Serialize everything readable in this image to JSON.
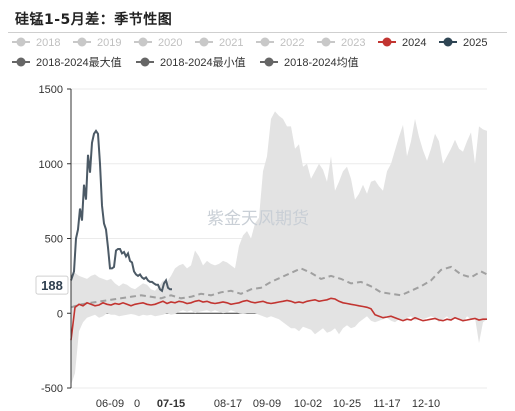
{
  "chart_data": {
    "type": "line",
    "title": "硅锰1-5月差：季节性图",
    "watermark": "紫金天风期货",
    "ylim": [
      -500,
      1500
    ],
    "yticks": [
      1500,
      1000,
      500,
      0,
      -500
    ],
    "xticks": [
      "06-09",
      "0",
      "07-15",
      "08-17",
      "09-09",
      "10-02",
      "10-25",
      "11-17",
      "12-10"
    ],
    "highlight_x": "07-15",
    "highlight_y": "188",
    "legend": [
      {
        "name": "2018",
        "color": "#c8c8c8",
        "active": false
      },
      {
        "name": "2019",
        "color": "#c8c8c8",
        "active": false
      },
      {
        "name": "2020",
        "color": "#c8c8c8",
        "active": false
      },
      {
        "name": "2021",
        "color": "#c8c8c8",
        "active": false
      },
      {
        "name": "2022",
        "color": "#c8c8c8",
        "active": false
      },
      {
        "name": "2023",
        "color": "#c8c8c8",
        "active": false
      },
      {
        "name": "2024",
        "color": "#c23531",
        "active": true
      },
      {
        "name": "2025",
        "color": "#2f4554",
        "active": true
      },
      {
        "name": "2018-2024最大值",
        "color": "#666666",
        "active": true
      },
      {
        "name": "2018-2024最小值",
        "color": "#666666",
        "active": true
      },
      {
        "name": "2018-2024均值",
        "color": "#666666",
        "active": true
      }
    ],
    "series": [
      {
        "name": "2018-2024最大值",
        "color": "#e3e3e3",
        "x": [
          0,
          4,
          8,
          12,
          16,
          20,
          24,
          28,
          32,
          36,
          40,
          44,
          48,
          52,
          56,
          60,
          64,
          68,
          72,
          76,
          80,
          84,
          88,
          92,
          96,
          100,
          104,
          108,
          112,
          116,
          120,
          124,
          128,
          132,
          136,
          140,
          144,
          148,
          152,
          156,
          160,
          164,
          168,
          172,
          176,
          180,
          184,
          188,
          192,
          196,
          200,
          204,
          208,
          212,
          216,
          220,
          224,
          228,
          232,
          236,
          240,
          244,
          248,
          252,
          256,
          260,
          264,
          268,
          272,
          276,
          280,
          284,
          288,
          292,
          296,
          300,
          304,
          308,
          312,
          316,
          320,
          324,
          328,
          332,
          336,
          340,
          344,
          348,
          352,
          356,
          360,
          364,
          368,
          372,
          376,
          380,
          384,
          388,
          392,
          396,
          400,
          404,
          408,
          412,
          416
        ],
        "y": [
          260,
          270,
          250,
          240,
          230,
          250,
          260,
          240,
          230,
          220,
          230,
          200,
          180,
          200,
          190,
          170,
          160,
          180,
          200,
          190,
          160,
          150,
          180,
          220,
          210,
          250,
          300,
          320,
          330,
          300,
          320,
          420,
          380,
          320,
          350,
          330,
          320,
          330,
          350,
          340,
          320,
          300,
          450,
          520,
          550,
          500,
          600,
          640,
          950,
          1050,
          1300,
          1350,
          1320,
          1300,
          1250,
          1250,
          1100,
          1130,
          980,
          1000,
          900,
          950,
          1000,
          960,
          880,
          1050,
          820,
          880,
          950,
          980,
          900,
          760,
          800,
          860,
          800,
          880,
          890,
          850,
          820,
          950,
          1000,
          1090,
          1180,
          1260,
          1050,
          1150,
          1300,
          1180,
          1090,
          1020,
          1100,
          1200,
          1150,
          1000,
          1050,
          1100,
          1160,
          1100,
          1080,
          1150,
          1210,
          1000,
          1250,
          1230,
          1220
        ]
      },
      {
        "name": "2018-2024最小值",
        "color": "#e3e3e3",
        "x": [
          0,
          4,
          8,
          12,
          16,
          20,
          24,
          28,
          32,
          36,
          40,
          44,
          48,
          52,
          56,
          60,
          64,
          68,
          72,
          76,
          80,
          84,
          88,
          92,
          96,
          100,
          104,
          108,
          112,
          116,
          120,
          124,
          128,
          132,
          136,
          140,
          144,
          148,
          152,
          156,
          160,
          164,
          168,
          172,
          176,
          180,
          184,
          188,
          192,
          196,
          200,
          204,
          208,
          212,
          216,
          220,
          224,
          228,
          232,
          236,
          240,
          244,
          248,
          252,
          256,
          260,
          264,
          268,
          272,
          276,
          280,
          284,
          288,
          292,
          296,
          300,
          304,
          308,
          312,
          316,
          320,
          324,
          328,
          332,
          336,
          340,
          344,
          348,
          352,
          356,
          360,
          364,
          368,
          372,
          376,
          380,
          384,
          388,
          392,
          396,
          400,
          404,
          408,
          412,
          416
        ],
        "y": [
          -480,
          -400,
          -120,
          -60,
          -30,
          -20,
          -10,
          -30,
          -20,
          0,
          -10,
          -10,
          -20,
          -15,
          -10,
          -5,
          -10,
          -20,
          -10,
          -15,
          -10,
          -20,
          -15,
          -10,
          0,
          -10,
          -5,
          10,
          20,
          10,
          20,
          0,
          10,
          15,
          20,
          10,
          20,
          10,
          0,
          5,
          20,
          10,
          0,
          -5,
          0,
          0,
          0,
          -10,
          -20,
          -30,
          -20,
          -30,
          -40,
          -60,
          -80,
          -100,
          -100,
          -120,
          -90,
          -100,
          -110,
          -140,
          -120,
          -100,
          -130,
          -120,
          -100,
          -140,
          -100,
          -80,
          -100,
          -90,
          -60,
          -40,
          -20,
          -50,
          -60,
          -50,
          -40,
          -30,
          -50,
          -60,
          -40,
          -50,
          -30,
          -20,
          -50,
          -30,
          -40,
          -30,
          -20,
          -30,
          -60,
          -40,
          -20,
          -50,
          -30,
          -40,
          -60,
          -20,
          -40,
          -30,
          -200,
          -60,
          -40
        ]
      },
      {
        "name": "2018-2024均值",
        "color": "#999999",
        "x": [
          0,
          10,
          20,
          30,
          40,
          50,
          60,
          70,
          80,
          90,
          100,
          110,
          120,
          130,
          140,
          150,
          160,
          170,
          180,
          190,
          200,
          210,
          220,
          230,
          240,
          250,
          260,
          270,
          280,
          290,
          300,
          310,
          320,
          330,
          340,
          350,
          360,
          370,
          380,
          390,
          400,
          410,
          416
        ],
        "y": [
          40,
          60,
          70,
          80,
          90,
          100,
          110,
          120,
          110,
          100,
          120,
          100,
          110,
          130,
          120,
          140,
          150,
          130,
          160,
          170,
          210,
          240,
          270,
          300,
          270,
          230,
          250,
          230,
          200,
          210,
          180,
          140,
          130,
          120,
          150,
          180,
          220,
          290,
          310,
          260,
          240,
          280,
          260
        ]
      },
      {
        "name": "2024",
        "color": "#c23531",
        "x": [
          0,
          4,
          8,
          12,
          16,
          20,
          24,
          28,
          32,
          36,
          40,
          44,
          48,
          52,
          56,
          60,
          64,
          68,
          72,
          76,
          80,
          84,
          88,
          92,
          96,
          100,
          104,
          108,
          112,
          116,
          120,
          124,
          128,
          132,
          136,
          140,
          144,
          148,
          152,
          156,
          160,
          164,
          168,
          172,
          176,
          180,
          184,
          188,
          192,
          196,
          200,
          204,
          208,
          212,
          216,
          220,
          224,
          228,
          232,
          236,
          240,
          244,
          248,
          252,
          256,
          260,
          264,
          268,
          272,
          276,
          280,
          284,
          288,
          292,
          296,
          300,
          304,
          308,
          312,
          316,
          320,
          324,
          328,
          332,
          336,
          340,
          344,
          348,
          352,
          356,
          360,
          364,
          368,
          372,
          376,
          380,
          384,
          388,
          392,
          396,
          400,
          404,
          408,
          412,
          416
        ],
        "y": [
          -180,
          40,
          60,
          50,
          70,
          60,
          50,
          55,
          70,
          60,
          55,
          65,
          60,
          70,
          60,
          50,
          60,
          65,
          70,
          60,
          55,
          60,
          70,
          80,
          65,
          75,
          70,
          80,
          75,
          65,
          70,
          80,
          85,
          75,
          80,
          70,
          65,
          70,
          75,
          70,
          60,
          65,
          70,
          80,
          85,
          75,
          70,
          75,
          80,
          70,
          65,
          70,
          75,
          80,
          85,
          80,
          70,
          75,
          70,
          80,
          85,
          90,
          80,
          85,
          90,
          100,
          95,
          80,
          70,
          65,
          60,
          55,
          50,
          45,
          40,
          30,
          -10,
          -20,
          -30,
          -25,
          -20,
          -30,
          -40,
          -50,
          -40,
          -45,
          -30,
          -40,
          -50,
          -45,
          -40,
          -35,
          -45,
          -50,
          -40,
          -45,
          -30,
          -40,
          -50,
          -45,
          -40,
          -35,
          -45,
          -40,
          -40
        ]
      },
      {
        "name": "2025",
        "color": "#4c5a66",
        "x": [
          0,
          3,
          5,
          7,
          9,
          11,
          13,
          15,
          17,
          19,
          21,
          23,
          25,
          27,
          29,
          31,
          33,
          35,
          37,
          39,
          41,
          43,
          45,
          47,
          49,
          51,
          53,
          55,
          57,
          59,
          61,
          63,
          65,
          67,
          69,
          71,
          73,
          75,
          77,
          79,
          81,
          83,
          85,
          87,
          89,
          91,
          93,
          95,
          97,
          99,
          101
        ],
        "y": [
          220,
          280,
          500,
          560,
          700,
          620,
          860,
          760,
          1060,
          940,
          1140,
          1200,
          1220,
          1200,
          1000,
          720,
          600,
          560,
          440,
          300,
          300,
          310,
          420,
          430,
          430,
          400,
          410,
          380,
          400,
          350,
          340,
          280,
          260,
          250,
          260,
          240,
          230,
          240,
          220,
          210,
          210,
          200,
          190,
          190,
          160,
          150,
          200,
          220,
          170,
          160,
          160
        ]
      }
    ]
  }
}
